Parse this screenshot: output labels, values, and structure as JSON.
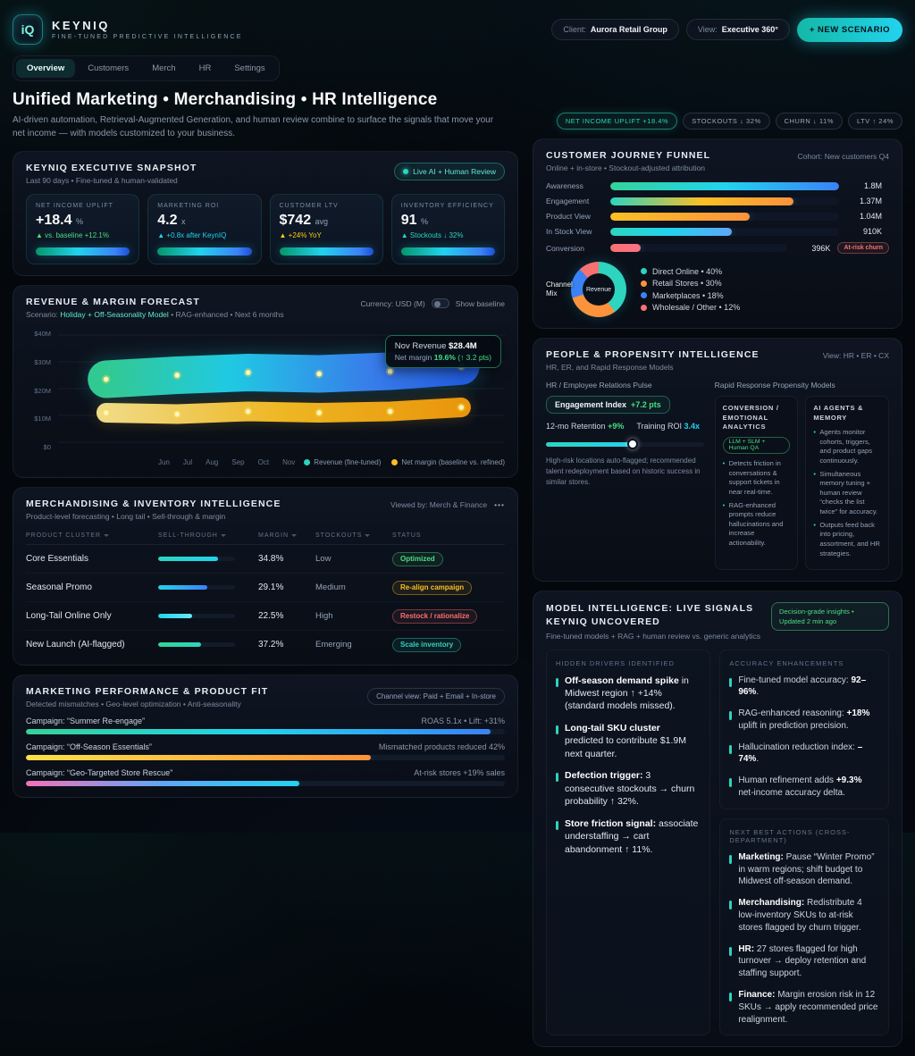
{
  "brand": {
    "logo": "iQ",
    "name": "KEYNIQ",
    "tagline": "FINE-TUNED PREDICTIVE INTELLIGENCE"
  },
  "header": {
    "client_label": "Client:",
    "client_value": "Aurora Retail Group",
    "view_label": "View:",
    "view_value": "Executive 360°",
    "new_scenario_label": "+ NEW SCENARIO"
  },
  "nav": {
    "tabs": [
      {
        "label": "Overview"
      },
      {
        "label": "Customers"
      },
      {
        "label": "Merch"
      },
      {
        "label": "HR"
      },
      {
        "label": "Settings"
      }
    ]
  },
  "hero": {
    "title": "Unified Marketing • Merchandising • HR Intelligence",
    "subtitle": "AI-driven automation, Retrieval-Augmented Generation, and human review combine to surface the signals that move your net income — with models customized to your business."
  },
  "kpi_pills": [
    {
      "label": "NET INCOME UPLIFT +18.4%"
    },
    {
      "label": "STOCKOUTS ↓ 32%"
    },
    {
      "label": "CHURN ↓ 11%"
    },
    {
      "label": "LTV ↑ 24%"
    }
  ],
  "snapshot": {
    "title": "KEYNIQ EXECUTIVE SNAPSHOT",
    "subtitle": "Last 90 days • Fine-tuned & human-validated",
    "badge": "Live AI + Human Review",
    "metrics": [
      {
        "label": "NET INCOME UPLIFT",
        "value": "+18.4",
        "unit": "%",
        "delta": "▲ vs. baseline +12.1%",
        "delta_color": "#4ade80"
      },
      {
        "label": "MARKETING ROI",
        "value": "4.2",
        "unit": "x",
        "delta": "▲ +0.8x after KeynIQ",
        "delta_color": "#22d3ee"
      },
      {
        "label": "CUSTOMER LTV",
        "value": "$742",
        "unit": "avg",
        "delta": "▲ +24% YoY",
        "delta_color": "#facc15"
      },
      {
        "label": "INVENTORY EFFICIENCY",
        "value": "91",
        "unit": "%",
        "delta": "▲ Stockouts ↓ 32%",
        "delta_color": "#2dd4bf"
      }
    ]
  },
  "forecast": {
    "title": "REVENUE & MARGIN FORECAST",
    "scenario_label": "Scenario:",
    "scenario_value": "Holiday + Off-Seasonality Model",
    "scenario_suffix": "• RAG-enhanced • Next 6 months",
    "currency_label": "Currency: USD (M)",
    "toggle_label": "Show baseline",
    "y_ticks": [
      "$40M",
      "$30M",
      "$20M",
      "$10M",
      "$0"
    ],
    "months": [
      "Jun",
      "Jul",
      "Aug",
      "Sep",
      "Oct",
      "Nov"
    ],
    "tooltip": {
      "l1_pre": "Nov Revenue ",
      "l1_bold": "$28.4M",
      "l2_pre": "Net margin ",
      "l2_bold": "19.6%",
      "l2_post": " (↑ 3.2 pts)"
    },
    "legend": [
      {
        "label": "Revenue (fine-tuned)",
        "color": "#2dd4bf"
      },
      {
        "label": "Net margin (baseline vs. refined)",
        "color": "#fbbf24"
      }
    ],
    "chart_data": {
      "type": "area",
      "x": [
        "Jun",
        "Jul",
        "Aug",
        "Sep",
        "Oct",
        "Nov"
      ],
      "ylim": [
        0,
        40
      ],
      "ylabel": "USD (M)",
      "series": [
        {
          "name": "Revenue (fine-tuned)",
          "values": [
            23.5,
            25,
            26,
            25.5,
            26.5,
            28.4
          ]
        },
        {
          "name": "Net margin (baseline vs. refined)",
          "values": [
            11,
            10.5,
            11.5,
            11,
            11.5,
            13
          ]
        }
      ]
    }
  },
  "merch": {
    "title": "MERCHANDISING & INVENTORY INTELLIGENCE",
    "subtitle": "Product-level forecasting • Long tail • Sell-through & margin",
    "viewer": "Viewed by: Merch & Finance",
    "menu_icon": "•••",
    "columns": [
      "PRODUCT CLUSTER",
      "SELL-THROUGH",
      "MARGIN",
      "STOCKOUTS",
      "STATUS"
    ],
    "rows": [
      {
        "cluster": "Core Essentials",
        "sell_through": 78,
        "bar_colors": [
          "#2dd4bf",
          "#22d3ee"
        ],
        "margin": "34.8%",
        "stockouts": "Low",
        "status": "Optimized"
      },
      {
        "cluster": "Seasonal Promo",
        "sell_through": 64,
        "bar_colors": [
          "#22d3ee",
          "#3b82f6"
        ],
        "margin": "29.1%",
        "stockouts": "Medium",
        "status": "Re-align campaign"
      },
      {
        "cluster": "Long-Tail Online Only",
        "sell_through": 44,
        "bar_colors": [
          "#22d3ee",
          "#67e8f9"
        ],
        "margin": "22.5%",
        "stockouts": "High",
        "status": "Restock / rationalize"
      },
      {
        "cluster": "New Launch (AI-flagged)",
        "sell_through": 56,
        "bar_colors": [
          "#34d399",
          "#2dd4bf"
        ],
        "margin": "37.2%",
        "stockouts": "Emerging",
        "status": "Scale inventory"
      }
    ]
  },
  "marketing": {
    "title": "MARKETING PERFORMANCE & PRODUCT FIT",
    "subtitle": "Detected mismatches • Geo-level optimization • Anti-seasonality",
    "channel_pill": "Channel view: Paid + Email + In-store",
    "campaigns": [
      {
        "name": "Campaign: “Summer Re-engage”",
        "result": "ROAS 5.1x • Lift: +31%",
        "pct": 97,
        "colors": [
          "#34d399",
          "#22d3ee",
          "#3b82f6"
        ]
      },
      {
        "name": "Campaign: “Off-Season Essentials”",
        "result": "Mismatched products reduced 42%",
        "pct": 72,
        "colors": [
          "#fde047",
          "#fb923c"
        ]
      },
      {
        "name": "Campaign: “Geo-Targeted Store Rescue”",
        "result": "At-risk stores +19% sales",
        "pct": 57,
        "colors": [
          "#f472b6",
          "#60a5fa",
          "#22d3ee"
        ]
      }
    ]
  },
  "funnel": {
    "title": "CUSTOMER JOURNEY FUNNEL",
    "subtitle": "Online + in-store • Stockout-adjusted attribution",
    "cohort": "Cohort: New customers Q4",
    "stages": [
      {
        "label": "Awareness",
        "value": "1.8M",
        "pct": 100,
        "colors": [
          "#34d399",
          "#22d3ee",
          "#3b82f6"
        ]
      },
      {
        "label": "Engagement",
        "value": "1.37M",
        "pct": 80,
        "colors": [
          "#2dd4bf",
          "#fbbf24",
          "#fb923c"
        ]
      },
      {
        "label": "Product View",
        "value": "1.04M",
        "pct": 61,
        "colors": [
          "#fbbf24",
          "#fb923c"
        ]
      },
      {
        "label": "In Stock View",
        "value": "910K",
        "pct": 53,
        "colors": [
          "#2dd4bf",
          "#22d3ee",
          "#60a5fa"
        ]
      },
      {
        "label": "Conversion",
        "value": "396K",
        "pct": 17,
        "colors": [
          "#f87171",
          "#fb7185"
        ],
        "badge": "At-risk churn"
      }
    ],
    "donut_label": "Channel Mix",
    "donut_center": "Revenue",
    "channel_mix": [
      {
        "label": "Direct Online • 40%",
        "pct": 40,
        "color": "#2dd4bf"
      },
      {
        "label": "Retail Stores • 30%",
        "pct": 30,
        "color": "#fb923c"
      },
      {
        "label": "Marketplaces • 18%",
        "pct": 18,
        "color": "#3b82f6"
      },
      {
        "label": "Wholesale / Other • 12%",
        "pct": 12,
        "color": "#f87171"
      }
    ],
    "chart_data": [
      {
        "type": "bar",
        "title": "Customer Journey Funnel",
        "categories": [
          "Awareness",
          "Engagement",
          "Product View",
          "In Stock View",
          "Conversion"
        ],
        "values": [
          1800000,
          1370000,
          1040000,
          910000,
          396000
        ]
      },
      {
        "type": "pie",
        "title": "Channel Mix",
        "categories": [
          "Direct Online",
          "Retail Stores",
          "Marketplaces",
          "Wholesale / Other"
        ],
        "values": [
          40,
          30,
          18,
          12
        ]
      }
    ]
  },
  "people": {
    "title": "PEOPLE & PROPENSITY INTELLIGENCE",
    "subtitle": "HR, ER, and Rapid Response Models",
    "view_label": "View: HR • ER • CX",
    "pulse": {
      "heading": "HR / Employee Relations Pulse",
      "engagement_label": "Engagement Index",
      "engagement_value": "+7.2 pts",
      "retention_label": "12-mo Retention",
      "retention_value": "+9%",
      "training_label": "Training ROI",
      "training_value": "3.4x",
      "slider_pct": 55,
      "note": "High-risk locations auto-flagged; recommended talent redeployment based on historic success in similar stores."
    },
    "rapid": {
      "heading": "Rapid Response Propensity Models",
      "cards": [
        {
          "title": "CONVERSION / EMOTIONAL ANALYTICS",
          "badge": "LLM + SLM + Human QA",
          "bullets": [
            "Detects friction in conversations & support tickets in near real-time.",
            "RAG-enhanced prompts reduce hallucinations and increase actionability."
          ]
        },
        {
          "title": "AI AGENTS & MEMORY",
          "bullets": [
            "Agents monitor cohorts, triggers, and product gaps continuously.",
            "Simultaneous memory tuning + human review “checks the list twice” for accuracy.",
            "Outputs feed back into pricing, assortment, and HR strategies."
          ]
        }
      ]
    }
  },
  "model_intel": {
    "title": "MODEL INTELLIGENCE: LIVE SIGNALS KEYNIQ UNCOVERED",
    "subtitle": "Fine-tuned models + RAG + human review vs. generic analytics",
    "badge": "Decision-grade insights • Updated 2 min ago",
    "drivers": {
      "heading": "HIDDEN DRIVERS IDENTIFIED",
      "items": [
        {
          "bold": "Off-season demand spike",
          "rest": " in Midwest region ↑ +14% (standard models missed)."
        },
        {
          "bold": "Long-tail SKU cluster",
          "rest": " predicted to contribute $1.9M next quarter."
        },
        {
          "bold": "Defection trigger:",
          "rest": " 3 consecutive stockouts → churn probability ↑ 32%."
        },
        {
          "bold": "Store friction signal:",
          "rest": " associate understaffing → cart abandonment ↑ 11%."
        }
      ]
    },
    "accuracy": {
      "heading": "ACCURACY ENHANCEMENTS",
      "items": [
        {
          "pre": "Fine-tuned model accuracy: ",
          "bold": "92–96%",
          "post": "."
        },
        {
          "pre": "RAG-enhanced reasoning: ",
          "bold": "+18%",
          "post": " uplift in prediction precision."
        },
        {
          "pre": "Hallucination reduction index: ",
          "bold": "–74%",
          "post": "."
        },
        {
          "pre": "Human refinement adds ",
          "bold": "+9.3%",
          "post": " net-income accuracy delta."
        }
      ]
    },
    "actions": {
      "heading": "NEXT BEST ACTIONS (CROSS-DEPARTMENT)",
      "items": [
        {
          "bold": "Marketing:",
          "rest": " Pause “Winter Promo” in warm regions; shift budget to Midwest off-season demand."
        },
        {
          "bold": "Merchandising:",
          "rest": " Redistribute 4 low-inventory SKUs to at-risk stores flagged by churn trigger."
        },
        {
          "bold": "HR:",
          "rest": " 27 stores flagged for high turnover → deploy retention and staffing support."
        },
        {
          "bold": "Finance:",
          "rest": " Margin erosion risk in 12 SKUs → apply recommended price realignment."
        }
      ]
    }
  }
}
